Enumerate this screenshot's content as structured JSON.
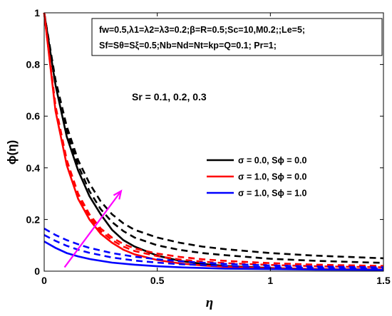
{
  "chart_data": {
    "type": "line",
    "xlabel": "η",
    "ylabel": "ϕ(η)",
    "xlim": [
      0,
      1.5
    ],
    "ylim": [
      0,
      1
    ],
    "xticks": [
      "0",
      "0.5",
      "1",
      "1.5"
    ],
    "yticks": [
      "0",
      "0.2",
      "0.4",
      "0.6",
      "0.8",
      "1"
    ],
    "params_line1": "fw=0.5,λ1=λ2=λ3=0.2;β=R=0.5;Sc=10,M0.2;;Le=5;",
    "params_line2": "Sf=Sθ=Sξ=0.5;Nb=Nd=Nt=kp=Q=0.1; Pr=1;",
    "annotation": "Sr = 0.1, 0.2, 0.3",
    "legend": [
      {
        "label": "σ = 0.0, Sϕ = 0.0",
        "color": "#000000"
      },
      {
        "label": "σ = 1.0, Sϕ = 0.0",
        "color": "#ff0000"
      },
      {
        "label": "σ = 1.0, Sϕ = 1.0",
        "color": "#0000ff"
      }
    ],
    "arrow_color": "#ff00ff",
    "arrow": {
      "from": [
        0.09,
        0.015
      ],
      "to": [
        0.34,
        0.31
      ]
    },
    "series": [
      {
        "color": "#000000",
        "dash": false,
        "points": [
          [
            0,
            1
          ],
          [
            0.05,
            0.72
          ],
          [
            0.1,
            0.52
          ],
          [
            0.15,
            0.39
          ],
          [
            0.2,
            0.29
          ],
          [
            0.25,
            0.22
          ],
          [
            0.3,
            0.16
          ],
          [
            0.35,
            0.12
          ],
          [
            0.4,
            0.095
          ],
          [
            0.5,
            0.06
          ],
          [
            0.6,
            0.04
          ],
          [
            0.7,
            0.028
          ],
          [
            0.8,
            0.02
          ],
          [
            1.0,
            0.012
          ],
          [
            1.2,
            0.008
          ],
          [
            1.5,
            0.006
          ]
        ]
      },
      {
        "color": "#000000",
        "dash": true,
        "points": [
          [
            0,
            1
          ],
          [
            0.05,
            0.73
          ],
          [
            0.1,
            0.54
          ],
          [
            0.15,
            0.41
          ],
          [
            0.2,
            0.31
          ],
          [
            0.25,
            0.24
          ],
          [
            0.3,
            0.19
          ],
          [
            0.35,
            0.155
          ],
          [
            0.4,
            0.13
          ],
          [
            0.5,
            0.1
          ],
          [
            0.6,
            0.082
          ],
          [
            0.7,
            0.07
          ],
          [
            0.8,
            0.062
          ],
          [
            1.0,
            0.048
          ],
          [
            1.2,
            0.04
          ],
          [
            1.5,
            0.032
          ]
        ]
      },
      {
        "color": "#000000",
        "dash": true,
        "points": [
          [
            0,
            1
          ],
          [
            0.05,
            0.74
          ],
          [
            0.1,
            0.56
          ],
          [
            0.15,
            0.43
          ],
          [
            0.2,
            0.34
          ],
          [
            0.25,
            0.27
          ],
          [
            0.3,
            0.22
          ],
          [
            0.35,
            0.185
          ],
          [
            0.4,
            0.16
          ],
          [
            0.5,
            0.13
          ],
          [
            0.6,
            0.11
          ],
          [
            0.7,
            0.095
          ],
          [
            0.8,
            0.085
          ],
          [
            1.0,
            0.07
          ],
          [
            1.2,
            0.06
          ],
          [
            1.5,
            0.05
          ]
        ]
      },
      {
        "color": "#ff0000",
        "dash": false,
        "points": [
          [
            0,
            1
          ],
          [
            0.05,
            0.62
          ],
          [
            0.1,
            0.41
          ],
          [
            0.15,
            0.28
          ],
          [
            0.2,
            0.2
          ],
          [
            0.25,
            0.145
          ],
          [
            0.3,
            0.11
          ],
          [
            0.35,
            0.083
          ],
          [
            0.4,
            0.065
          ],
          [
            0.5,
            0.043
          ],
          [
            0.6,
            0.03
          ],
          [
            0.7,
            0.022
          ],
          [
            0.8,
            0.017
          ],
          [
            1.0,
            0.011
          ],
          [
            1.2,
            0.008
          ],
          [
            1.5,
            0.006
          ]
        ]
      },
      {
        "color": "#ff0000",
        "dash": true,
        "points": [
          [
            0,
            1
          ],
          [
            0.05,
            0.63
          ],
          [
            0.1,
            0.42
          ],
          [
            0.15,
            0.29
          ],
          [
            0.2,
            0.21
          ],
          [
            0.25,
            0.155
          ],
          [
            0.3,
            0.12
          ],
          [
            0.35,
            0.095
          ],
          [
            0.4,
            0.078
          ],
          [
            0.5,
            0.058
          ],
          [
            0.6,
            0.045
          ],
          [
            0.7,
            0.037
          ],
          [
            0.8,
            0.031
          ],
          [
            1.0,
            0.024
          ],
          [
            1.2,
            0.019
          ],
          [
            1.5,
            0.015
          ]
        ]
      },
      {
        "color": "#ff0000",
        "dash": true,
        "points": [
          [
            0,
            1
          ],
          [
            0.05,
            0.64
          ],
          [
            0.1,
            0.43
          ],
          [
            0.15,
            0.3
          ],
          [
            0.2,
            0.22
          ],
          [
            0.25,
            0.165
          ],
          [
            0.3,
            0.13
          ],
          [
            0.35,
            0.105
          ],
          [
            0.4,
            0.088
          ],
          [
            0.5,
            0.068
          ],
          [
            0.6,
            0.055
          ],
          [
            0.7,
            0.046
          ],
          [
            0.8,
            0.04
          ],
          [
            1.0,
            0.031
          ],
          [
            1.2,
            0.025
          ],
          [
            1.5,
            0.02
          ]
        ]
      },
      {
        "color": "#0000ff",
        "dash": false,
        "points": [
          [
            0,
            0.115
          ],
          [
            0.05,
            0.09
          ],
          [
            0.1,
            0.07
          ],
          [
            0.15,
            0.057
          ],
          [
            0.2,
            0.047
          ],
          [
            0.3,
            0.033
          ],
          [
            0.4,
            0.025
          ],
          [
            0.5,
            0.019
          ],
          [
            0.6,
            0.015
          ],
          [
            0.8,
            0.01
          ],
          [
            1.0,
            0.008
          ],
          [
            1.2,
            0.006
          ],
          [
            1.5,
            0.005
          ]
        ]
      },
      {
        "color": "#0000ff",
        "dash": true,
        "points": [
          [
            0,
            0.14
          ],
          [
            0.05,
            0.117
          ],
          [
            0.1,
            0.098
          ],
          [
            0.15,
            0.083
          ],
          [
            0.2,
            0.071
          ],
          [
            0.3,
            0.053
          ],
          [
            0.4,
            0.041
          ],
          [
            0.5,
            0.033
          ],
          [
            0.6,
            0.027
          ],
          [
            0.8,
            0.02
          ],
          [
            1.0,
            0.015
          ],
          [
            1.2,
            0.012
          ],
          [
            1.5,
            0.01
          ]
        ]
      },
      {
        "color": "#0000ff",
        "dash": true,
        "points": [
          [
            0,
            0.165
          ],
          [
            0.05,
            0.14
          ],
          [
            0.1,
            0.12
          ],
          [
            0.15,
            0.104
          ],
          [
            0.2,
            0.09
          ],
          [
            0.3,
            0.07
          ],
          [
            0.4,
            0.056
          ],
          [
            0.5,
            0.046
          ],
          [
            0.6,
            0.038
          ],
          [
            0.8,
            0.028
          ],
          [
            1.0,
            0.022
          ],
          [
            1.2,
            0.018
          ],
          [
            1.5,
            0.015
          ]
        ]
      }
    ]
  }
}
